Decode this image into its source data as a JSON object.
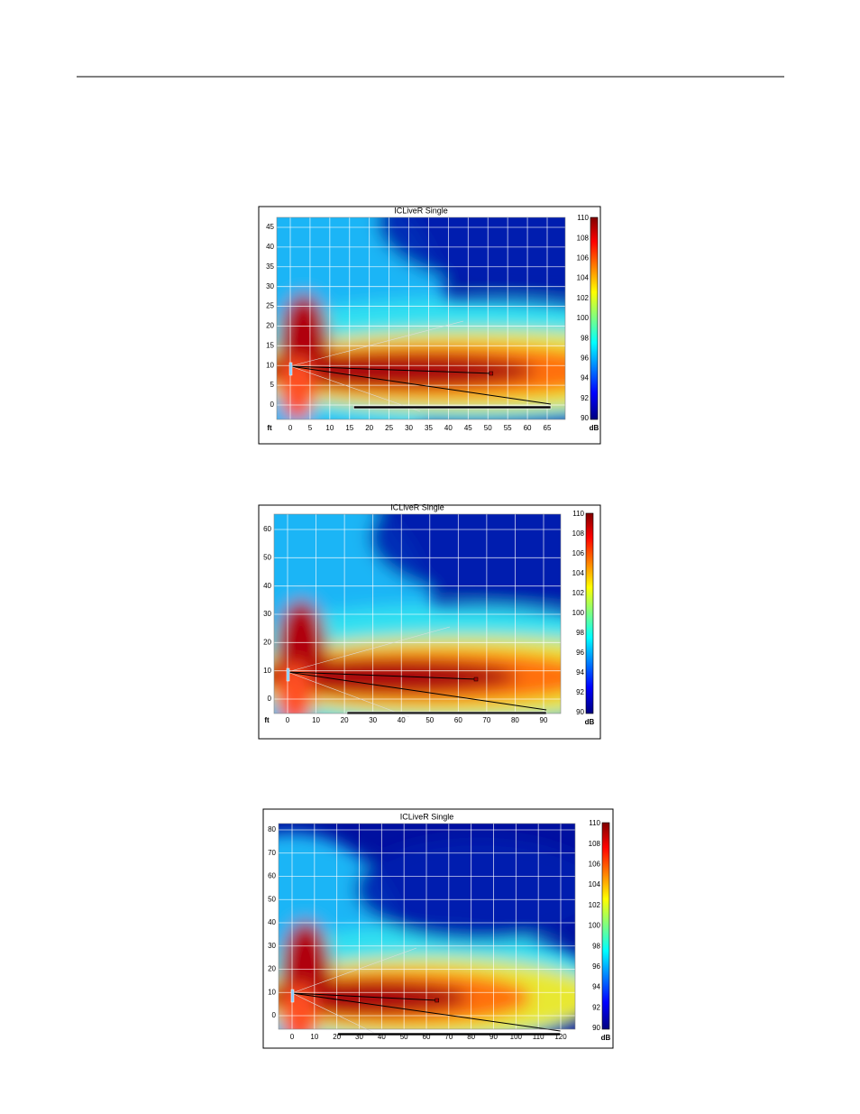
{
  "figures": [
    {
      "title": "ICLiveR Single",
      "y_ticks": [
        45,
        40,
        35,
        30,
        25,
        20,
        15,
        10,
        5,
        0
      ],
      "x_unit": "ft",
      "x_ticks": [
        0,
        5,
        10,
        15,
        20,
        25,
        30,
        35,
        40,
        45,
        50,
        55,
        60,
        65
      ],
      "colorbar_ticks": [
        110,
        108,
        106,
        104,
        102,
        100,
        98,
        96,
        94,
        92,
        90
      ],
      "colorbar_unit": "dB"
    },
    {
      "title": "ICLiveR Single",
      "y_ticks": [
        60,
        50,
        40,
        30,
        20,
        10,
        0
      ],
      "x_unit": "ft",
      "x_ticks": [
        0,
        10,
        20,
        30,
        40,
        50,
        60,
        70,
        80,
        90
      ],
      "colorbar_ticks": [
        110,
        108,
        106,
        104,
        102,
        100,
        98,
        96,
        94,
        92,
        90
      ],
      "colorbar_unit": "dB"
    },
    {
      "title": "ICLiveR Single",
      "y_ticks": [
        80,
        70,
        60,
        50,
        40,
        30,
        20,
        10,
        0
      ],
      "x_ticks": [
        0,
        10,
        20,
        30,
        40,
        50,
        60,
        70,
        80,
        90,
        100,
        110,
        120
      ],
      "colorbar_ticks": [
        110,
        108,
        106,
        104,
        102,
        100,
        98,
        96,
        94,
        92,
        90
      ],
      "colorbar_unit": "dB"
    }
  ]
}
